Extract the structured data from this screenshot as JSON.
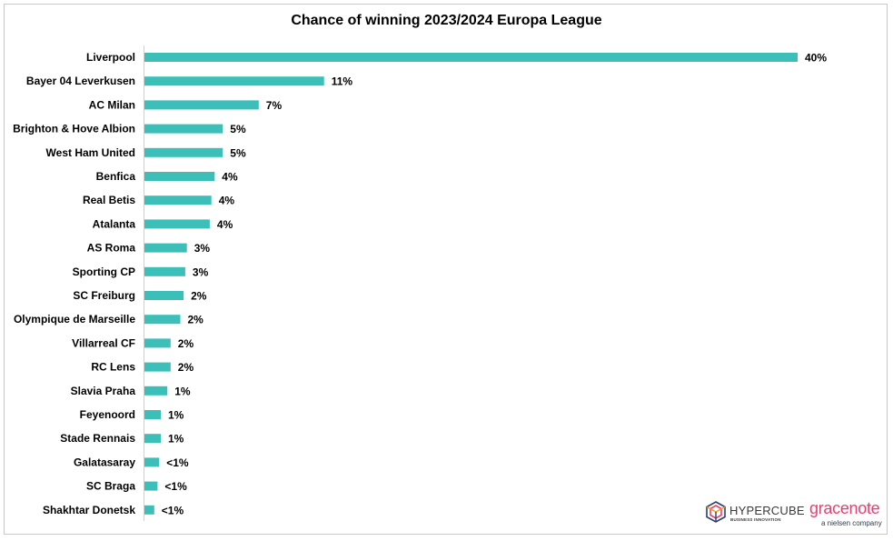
{
  "chart_data": {
    "type": "bar",
    "orientation": "horizontal",
    "title": "Chance of winning 2023/2024 Europa League",
    "xlabel": "",
    "ylabel": "",
    "grid": false,
    "legend": "none",
    "bar_color": "#3cbfb9",
    "xlim": [
      0,
      40
    ],
    "categories": [
      "Liverpool",
      "Bayer 04 Leverkusen",
      "AC Milan",
      "Brighton & Hove Albion",
      "West Ham United",
      "Benfica",
      "Real Betis",
      "Atalanta",
      "AS Roma",
      "Sporting CP",
      "SC Freiburg",
      "Olympique de Marseille",
      "Villarreal CF",
      "RC Lens",
      "Slavia Praha",
      "Feyenoord",
      "Stade Rennais",
      "Galatasaray",
      "SC Braga",
      "Shakhtar Donetsk"
    ],
    "values": [
      40.0,
      11.0,
      7.0,
      4.8,
      4.8,
      4.3,
      4.1,
      4.0,
      2.6,
      2.5,
      2.4,
      2.2,
      1.6,
      1.6,
      1.4,
      1.0,
      1.0,
      0.9,
      0.8,
      0.6
    ],
    "labels": [
      "40%",
      "11%",
      "7%",
      "5%",
      "5%",
      "4%",
      "4%",
      "4%",
      "3%",
      "3%",
      "2%",
      "2%",
      "2%",
      "2%",
      "1%",
      "1%",
      "1%",
      "<1%",
      "<1%",
      "<1%"
    ]
  },
  "logos": {
    "hypercube": {
      "name": "HYPERCUBE",
      "tagline": "BUSINESS INNOVATION",
      "icon": "hypercube-cube-icon",
      "colors": [
        "#e8416f",
        "#2a3f6b",
        "#f39c1d"
      ]
    },
    "gracenote": {
      "name": "gracenote",
      "tagline": "a nielsen company",
      "color": "#e8416f",
      "tagline_color": "#2f3a4f"
    }
  }
}
